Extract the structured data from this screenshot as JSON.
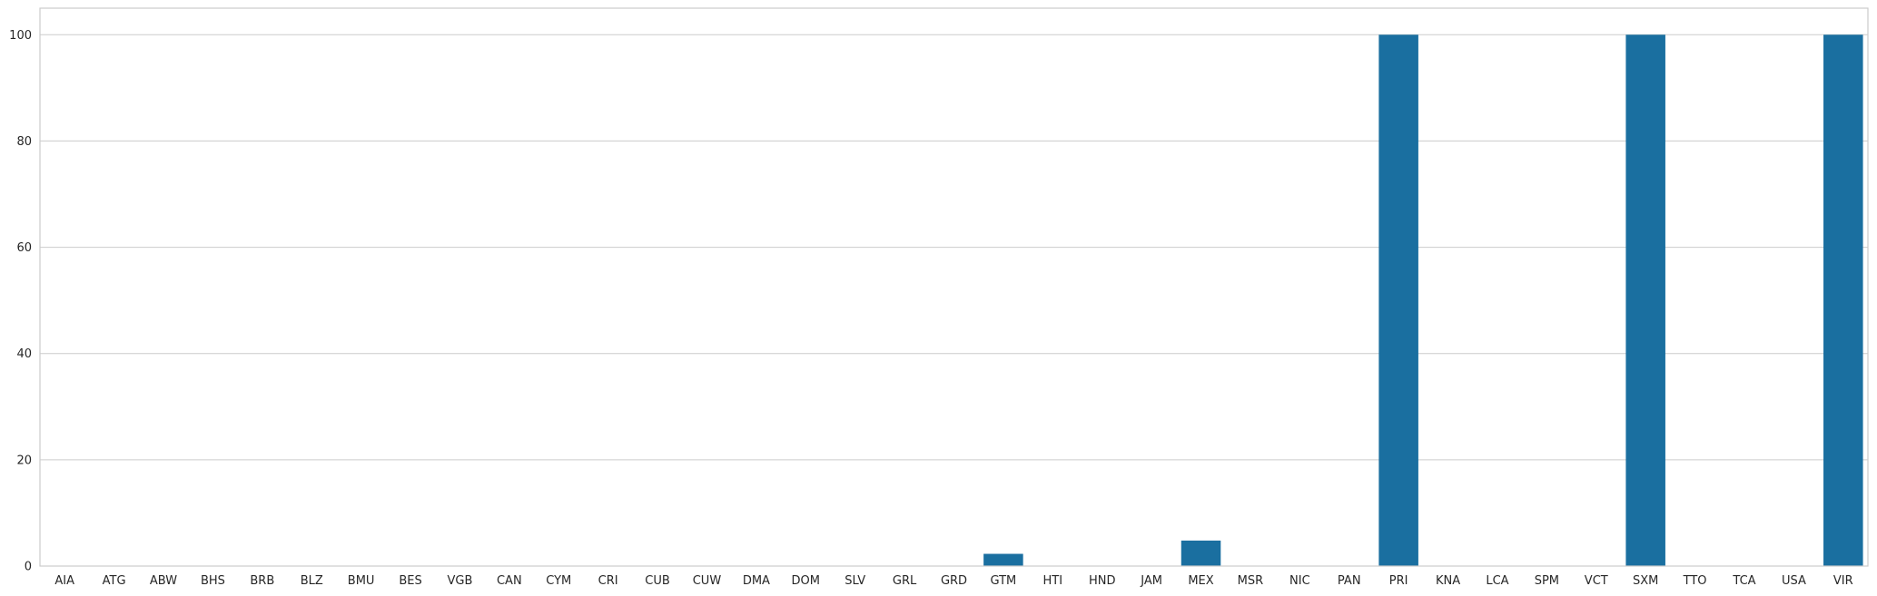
{
  "chart_data": {
    "type": "bar",
    "title": "",
    "xlabel": "",
    "ylabel": "",
    "categories": [
      "AIA",
      "ATG",
      "ABW",
      "BHS",
      "BRB",
      "BLZ",
      "BMU",
      "BES",
      "VGB",
      "CAN",
      "CYM",
      "CRI",
      "CUB",
      "CUW",
      "DMA",
      "DOM",
      "SLV",
      "GRL",
      "GRD",
      "GTM",
      "HTI",
      "HND",
      "JAM",
      "MEX",
      "MSR",
      "NIC",
      "PAN",
      "PRI",
      "KNA",
      "LCA",
      "SPM",
      "VCT",
      "SXM",
      "TTO",
      "TCA",
      "USA",
      "VIR"
    ],
    "values": [
      0,
      0,
      0,
      0,
      0,
      0,
      0,
      0,
      0,
      0,
      0,
      0,
      0,
      0,
      0,
      0,
      0,
      0,
      0,
      2.3,
      0,
      0,
      0,
      4.8,
      0,
      0,
      0,
      100,
      0,
      0,
      0,
      0,
      100,
      0,
      0,
      0,
      100
    ],
    "ylim": [
      0,
      105
    ],
    "yticks": [
      0,
      20,
      40,
      60,
      80,
      100
    ],
    "grid": "horizontal",
    "bar_color": "#1a6fa0",
    "grid_color": "#cccccc",
    "frame_color": "#cccccc",
    "text_color": "#262626"
  }
}
